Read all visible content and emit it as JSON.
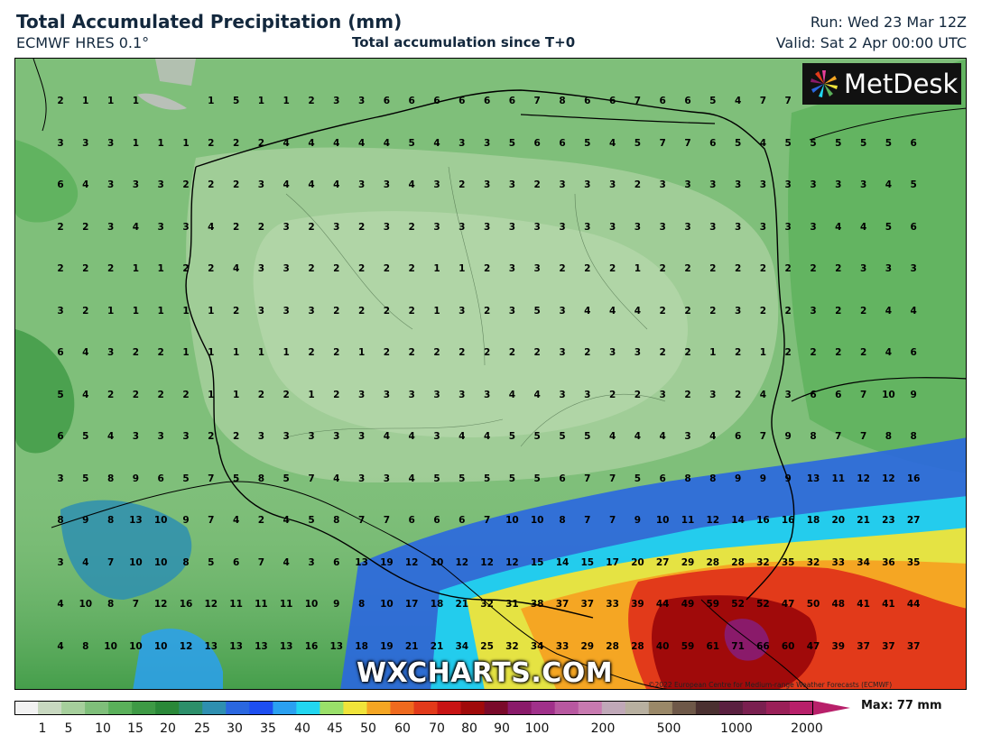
{
  "header": {
    "title": "Total Accumulated Precipitation (mm)",
    "model": "ECMWF HRES 0.1°",
    "subtitle": "Total accumulation since T+0",
    "run": "Run: Wed 23 Mar 12Z",
    "valid": "Valid: Sat 2 Apr 00:00 UTC"
  },
  "logo": {
    "text": "MetDesk",
    "icon": "pinwheel-icon"
  },
  "watermark": "WXCHARTS.COM",
  "copyright": "©2022 European Centre for Medium-range Weather Forecasts (ECMWF)",
  "legend": {
    "ticks": [
      "1",
      "5",
      "10",
      "15",
      "20",
      "25",
      "30",
      "35",
      "40",
      "45",
      "50",
      "60",
      "70",
      "80",
      "90",
      "100",
      "200",
      "500",
      "1000",
      "2000"
    ],
    "max_label": "Max: 77 mm",
    "colors": [
      "#f2f2f2",
      "#c8d8c0",
      "#a6cf9c",
      "#7fbf7a",
      "#5ab05a",
      "#3e9a45",
      "#2a8838",
      "#2c8f6a",
      "#2e8fb0",
      "#2a67e0",
      "#1d4ef0",
      "#2aa0f0",
      "#22d6f0",
      "#9ae06a",
      "#f0e43a",
      "#f5a623",
      "#ef6a1e",
      "#e23a1a",
      "#c81414",
      "#a00a0a",
      "#7a0a2a",
      "#8a1a6a",
      "#a0308a",
      "#b858a0",
      "#c87ab0",
      "#c0a8b8",
      "#b8b0a0",
      "#9a8868",
      "#6e5848",
      "#4a3030",
      "#5a2040",
      "#7a2050",
      "#9a2058",
      "#b8206a"
    ]
  },
  "map": {
    "values": [
      [
        "2",
        "1",
        "1",
        "1",
        "",
        "",
        "1",
        "5",
        "1",
        "1",
        "2",
        "3",
        "3",
        "6",
        "6",
        "6",
        "6",
        "6",
        "6",
        "7",
        "8",
        "6",
        "6",
        "7",
        "6",
        "6",
        "5",
        "4",
        "7",
        "7"
      ],
      [
        "3",
        "3",
        "3",
        "1",
        "1",
        "1",
        "2",
        "2",
        "2",
        "4",
        "4",
        "4",
        "4",
        "4",
        "5",
        "4",
        "3",
        "3",
        "5",
        "6",
        "6",
        "5",
        "4",
        "5",
        "7",
        "7",
        "6",
        "5",
        "4",
        "5",
        "5",
        "5",
        "5",
        "5",
        "6"
      ],
      [
        "6",
        "4",
        "3",
        "3",
        "3",
        "2",
        "2",
        "2",
        "3",
        "4",
        "4",
        "4",
        "3",
        "3",
        "4",
        "3",
        "2",
        "3",
        "3",
        "2",
        "3",
        "3",
        "3",
        "2",
        "3",
        "3",
        "3",
        "3",
        "3",
        "3",
        "3",
        "3",
        "3",
        "4",
        "5"
      ],
      [
        "2",
        "2",
        "3",
        "4",
        "3",
        "3",
        "4",
        "2",
        "2",
        "3",
        "2",
        "3",
        "2",
        "3",
        "2",
        "3",
        "3",
        "3",
        "3",
        "3",
        "3",
        "3",
        "3",
        "3",
        "3",
        "3",
        "3",
        "3",
        "3",
        "3",
        "3",
        "4",
        "4",
        "5",
        "6"
      ],
      [
        "2",
        "2",
        "2",
        "1",
        "1",
        "2",
        "2",
        "4",
        "3",
        "3",
        "2",
        "2",
        "2",
        "2",
        "2",
        "1",
        "1",
        "2",
        "3",
        "3",
        "2",
        "2",
        "2",
        "1",
        "2",
        "2",
        "2",
        "2",
        "2",
        "2",
        "2",
        "2",
        "3",
        "3",
        "3"
      ],
      [
        "3",
        "2",
        "1",
        "1",
        "1",
        "1",
        "1",
        "2",
        "3",
        "3",
        "3",
        "2",
        "2",
        "2",
        "2",
        "1",
        "3",
        "2",
        "3",
        "5",
        "3",
        "4",
        "4",
        "4",
        "2",
        "2",
        "2",
        "3",
        "2",
        "2",
        "3",
        "2",
        "2",
        "4",
        "4"
      ],
      [
        "6",
        "4",
        "3",
        "2",
        "2",
        "1",
        "1",
        "1",
        "1",
        "1",
        "2",
        "2",
        "1",
        "2",
        "2",
        "2",
        "2",
        "2",
        "2",
        "2",
        "3",
        "2",
        "3",
        "3",
        "2",
        "2",
        "1",
        "2",
        "1",
        "2",
        "2",
        "2",
        "2",
        "4",
        "6"
      ],
      [
        "5",
        "4",
        "2",
        "2",
        "2",
        "2",
        "1",
        "1",
        "2",
        "2",
        "1",
        "2",
        "3",
        "3",
        "3",
        "3",
        "3",
        "3",
        "4",
        "4",
        "3",
        "3",
        "2",
        "2",
        "3",
        "2",
        "3",
        "2",
        "4",
        "3",
        "6",
        "6",
        "7",
        "10",
        "9"
      ],
      [
        "6",
        "5",
        "4",
        "3",
        "3",
        "3",
        "2",
        "2",
        "3",
        "3",
        "3",
        "3",
        "3",
        "4",
        "4",
        "3",
        "4",
        "4",
        "5",
        "5",
        "5",
        "5",
        "4",
        "4",
        "4",
        "3",
        "4",
        "6",
        "7",
        "9",
        "8",
        "7",
        "7",
        "8",
        "8"
      ],
      [
        "3",
        "5",
        "8",
        "9",
        "6",
        "5",
        "7",
        "5",
        "8",
        "5",
        "7",
        "4",
        "3",
        "3",
        "4",
        "5",
        "5",
        "5",
        "5",
        "5",
        "6",
        "7",
        "7",
        "5",
        "6",
        "8",
        "8",
        "9",
        "9",
        "9",
        "13",
        "11",
        "12",
        "12",
        "16"
      ],
      [
        "8",
        "9",
        "8",
        "13",
        "10",
        "9",
        "7",
        "4",
        "2",
        "4",
        "5",
        "8",
        "7",
        "7",
        "6",
        "6",
        "6",
        "7",
        "10",
        "10",
        "8",
        "7",
        "7",
        "9",
        "10",
        "11",
        "12",
        "14",
        "16",
        "16",
        "18",
        "20",
        "21",
        "23",
        "27"
      ],
      [
        "3",
        "4",
        "7",
        "10",
        "10",
        "8",
        "5",
        "6",
        "7",
        "4",
        "3",
        "6",
        "13",
        "19",
        "12",
        "10",
        "12",
        "12",
        "12",
        "15",
        "14",
        "15",
        "17",
        "20",
        "27",
        "29",
        "28",
        "28",
        "32",
        "35",
        "32",
        "33",
        "34",
        "36",
        "35"
      ],
      [
        "4",
        "10",
        "8",
        "7",
        "12",
        "16",
        "12",
        "11",
        "11",
        "11",
        "10",
        "9",
        "8",
        "10",
        "17",
        "18",
        "21",
        "32",
        "31",
        "38",
        "37",
        "37",
        "33",
        "39",
        "44",
        "49",
        "59",
        "52",
        "52",
        "47",
        "50",
        "48",
        "41",
        "41",
        "44"
      ],
      [
        "4",
        "8",
        "10",
        "10",
        "10",
        "12",
        "13",
        "13",
        "13",
        "13",
        "16",
        "13",
        "18",
        "19",
        "21",
        "21",
        "34",
        "25",
        "32",
        "34",
        "33",
        "29",
        "28",
        "28",
        "40",
        "59",
        "61",
        "71",
        "66",
        "60",
        "47",
        "39",
        "37",
        "37",
        "37"
      ]
    ]
  }
}
